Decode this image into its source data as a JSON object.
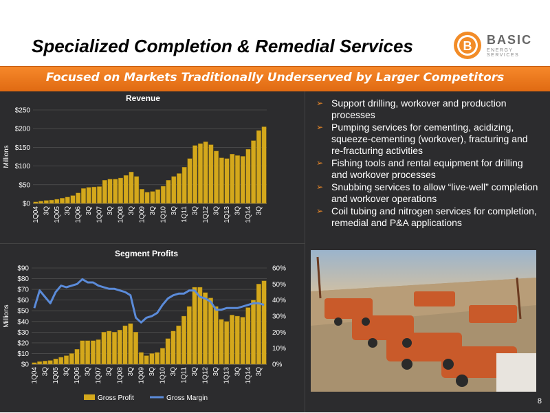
{
  "slide": {
    "title": "Specialized Completion & Remedial Services",
    "subtitle": "Focused on Markets Traditionally Underserved by Larger Competitors",
    "page_number": "8"
  },
  "logo": {
    "text": "BASIC",
    "sub": "ENERGY SERVICES"
  },
  "colors": {
    "orange": "#f28c28",
    "bar_gold": "#d4a81c",
    "line_blue": "#5b8bd9",
    "background": "#2c2c2e"
  },
  "bullets": [
    "Support drilling, workover and production processes",
    "Pumping services for cementing, acidizing, squeeze-cementing (workover), fracturing and re-fracturing activities",
    "Fishing tools and rental equipment for drilling and workover processes",
    "Snubbing services to allow “live-well” completion and workover operations",
    "Coil tubing and nitrogen services for completion, remedial and P&A applications"
  ],
  "chart_data": [
    {
      "type": "bar",
      "title": "Revenue",
      "ylabel": "Millions",
      "ylim": [
        0,
        250
      ],
      "yticks": [
        "$0",
        "$50",
        "$100",
        "$150",
        "$200",
        "$250"
      ],
      "tick_labels": [
        "1Q04",
        "3Q",
        "1Q05",
        "3Q",
        "1Q06",
        "3Q",
        "1Q07",
        "3Q",
        "1Q08",
        "3Q",
        "1Q09",
        "3Q",
        "1Q10",
        "3Q",
        "1Q11",
        "3Q",
        "1Q12",
        "3Q",
        "1Q13",
        "3Q",
        "1Q14",
        "3Q"
      ],
      "categories": [
        "1Q04",
        "2Q04",
        "3Q04",
        "4Q04",
        "1Q05",
        "2Q05",
        "3Q05",
        "4Q05",
        "1Q06",
        "2Q06",
        "3Q06",
        "4Q06",
        "1Q07",
        "2Q07",
        "3Q07",
        "4Q07",
        "1Q08",
        "2Q08",
        "3Q08",
        "4Q08",
        "1Q09",
        "2Q09",
        "3Q09",
        "4Q09",
        "1Q10",
        "2Q10",
        "3Q10",
        "4Q10",
        "1Q11",
        "2Q11",
        "3Q11",
        "4Q11",
        "1Q12",
        "2Q12",
        "3Q12",
        "4Q12",
        "1Q13",
        "2Q13",
        "3Q13",
        "4Q13",
        "1Q14",
        "2Q14",
        "3Q14",
        "4Q14"
      ],
      "values": [
        4,
        6,
        8,
        9,
        11,
        14,
        17,
        21,
        28,
        40,
        43,
        44,
        45,
        62,
        65,
        65,
        68,
        75,
        84,
        72,
        38,
        30,
        32,
        37,
        46,
        62,
        72,
        80,
        97,
        120,
        155,
        160,
        165,
        157,
        140,
        122,
        120,
        132,
        128,
        126,
        145,
        168,
        195,
        205
      ]
    },
    {
      "type": "bar",
      "title": "Segment Profits",
      "ylabel": "Millions",
      "ylim": [
        0,
        90
      ],
      "ylim_right": [
        0,
        60
      ],
      "yticks": [
        "$0",
        "$10",
        "$20",
        "$30",
        "$40",
        "$50",
        "$60",
        "$70",
        "$80",
        "$90"
      ],
      "yticks_right": [
        "0%",
        "10%",
        "20%",
        "30%",
        "40%",
        "50%",
        "60%"
      ],
      "tick_labels": [
        "1Q04",
        "3Q",
        "1Q05",
        "3Q",
        "1Q06",
        "3Q",
        "1Q07",
        "3Q",
        "1Q08",
        "3Q",
        "1Q09",
        "3Q",
        "1Q10",
        "3Q",
        "1Q11",
        "3Q",
        "1Q12",
        "3Q",
        "1Q13",
        "3Q",
        "1Q14",
        "3Q"
      ],
      "legend_position": "bottom",
      "series": [
        {
          "name": "Gross Profit",
          "type": "bar",
          "values": [
            1.5,
            2.5,
            3,
            3.5,
            5,
            6.5,
            8,
            10,
            14,
            22,
            22,
            22,
            23,
            30,
            31,
            30,
            32,
            36,
            38,
            30,
            11,
            8,
            10,
            11,
            15,
            24,
            31,
            36,
            45,
            54,
            72,
            72,
            67,
            62,
            54,
            42,
            40,
            46,
            45,
            44,
            53,
            60,
            75,
            78
          ]
        },
        {
          "name": "Gross Margin",
          "type": "line",
          "axis": "right",
          "values": [
            35,
            46,
            42,
            38,
            45,
            49,
            48,
            49,
            50,
            53,
            51,
            51,
            49,
            48,
            47,
            47,
            46,
            45,
            43,
            29,
            26,
            29,
            30,
            32,
            37,
            41,
            43,
            44,
            44,
            46,
            46,
            42,
            41,
            39,
            34,
            34,
            35,
            35,
            35,
            36,
            37,
            38,
            38,
            37
          ]
        }
      ]
    }
  ]
}
